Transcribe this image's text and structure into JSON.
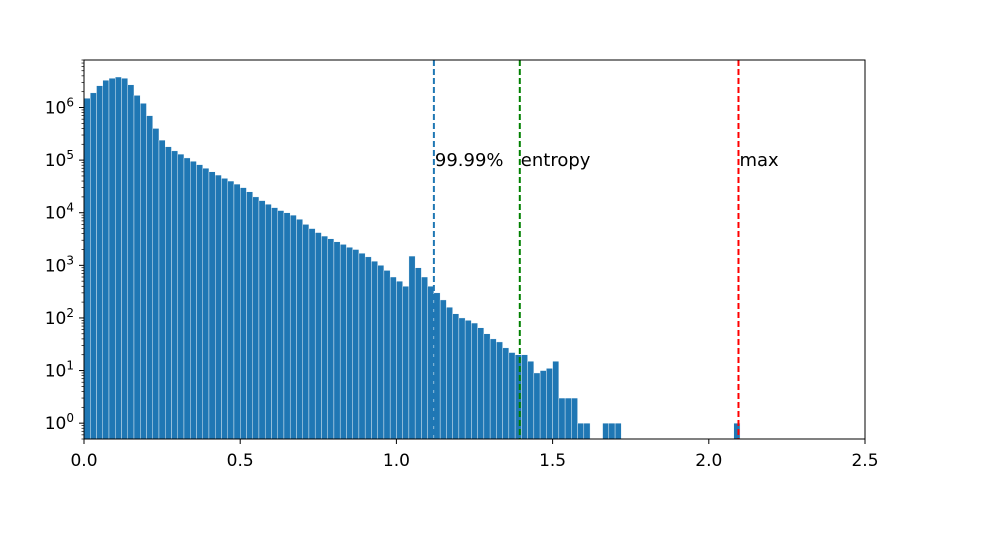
{
  "chart_data": {
    "type": "bar",
    "title": "",
    "xlabel": "",
    "ylabel": "",
    "yscale": "log",
    "xlim": [
      0.0,
      2.5
    ],
    "ylim": [
      0.5,
      8000000
    ],
    "grid": false,
    "bar_color": "#1f77b4",
    "bin_width": 0.02,
    "bins": [
      {
        "x": 0.0,
        "count": 1500000
      },
      {
        "x": 0.02,
        "count": 1900000
      },
      {
        "x": 0.04,
        "count": 2600000
      },
      {
        "x": 0.06,
        "count": 3300000
      },
      {
        "x": 0.08,
        "count": 3600000
      },
      {
        "x": 0.1,
        "count": 3800000
      },
      {
        "x": 0.12,
        "count": 3600000
      },
      {
        "x": 0.14,
        "count": 2700000
      },
      {
        "x": 0.16,
        "count": 1700000
      },
      {
        "x": 0.18,
        "count": 1200000
      },
      {
        "x": 0.2,
        "count": 700000
      },
      {
        "x": 0.22,
        "count": 400000
      },
      {
        "x": 0.24,
        "count": 240000
      },
      {
        "x": 0.26,
        "count": 180000
      },
      {
        "x": 0.28,
        "count": 150000
      },
      {
        "x": 0.3,
        "count": 130000
      },
      {
        "x": 0.32,
        "count": 110000
      },
      {
        "x": 0.34,
        "count": 95000
      },
      {
        "x": 0.36,
        "count": 82000
      },
      {
        "x": 0.38,
        "count": 70000
      },
      {
        "x": 0.4,
        "count": 60000
      },
      {
        "x": 0.42,
        "count": 52000
      },
      {
        "x": 0.44,
        "count": 45000
      },
      {
        "x": 0.46,
        "count": 40000
      },
      {
        "x": 0.48,
        "count": 35000
      },
      {
        "x": 0.5,
        "count": 30000
      },
      {
        "x": 0.52,
        "count": 25000
      },
      {
        "x": 0.54,
        "count": 20000
      },
      {
        "x": 0.56,
        "count": 17000
      },
      {
        "x": 0.58,
        "count": 14500
      },
      {
        "x": 0.6,
        "count": 12500
      },
      {
        "x": 0.62,
        "count": 11000
      },
      {
        "x": 0.64,
        "count": 10000
      },
      {
        "x": 0.66,
        "count": 9000
      },
      {
        "x": 0.68,
        "count": 7500
      },
      {
        "x": 0.7,
        "count": 6000
      },
      {
        "x": 0.72,
        "count": 5000
      },
      {
        "x": 0.74,
        "count": 4200
      },
      {
        "x": 0.76,
        "count": 3600
      },
      {
        "x": 0.78,
        "count": 3200
      },
      {
        "x": 0.8,
        "count": 2800
      },
      {
        "x": 0.82,
        "count": 2500
      },
      {
        "x": 0.84,
        "count": 2200
      },
      {
        "x": 0.86,
        "count": 2000
      },
      {
        "x": 0.88,
        "count": 1700
      },
      {
        "x": 0.9,
        "count": 1450
      },
      {
        "x": 0.92,
        "count": 1200
      },
      {
        "x": 0.94,
        "count": 1000
      },
      {
        "x": 0.96,
        "count": 800
      },
      {
        "x": 0.98,
        "count": 600
      },
      {
        "x": 1.0,
        "count": 500
      },
      {
        "x": 1.02,
        "count": 400
      },
      {
        "x": 1.04,
        "count": 1500
      },
      {
        "x": 1.06,
        "count": 900
      },
      {
        "x": 1.08,
        "count": 600
      },
      {
        "x": 1.1,
        "count": 400
      },
      {
        "x": 1.12,
        "count": 300
      },
      {
        "x": 1.14,
        "count": 220
      },
      {
        "x": 1.16,
        "count": 160
      },
      {
        "x": 1.18,
        "count": 120
      },
      {
        "x": 1.2,
        "count": 100
      },
      {
        "x": 1.22,
        "count": 90
      },
      {
        "x": 1.24,
        "count": 80
      },
      {
        "x": 1.26,
        "count": 65
      },
      {
        "x": 1.28,
        "count": 50
      },
      {
        "x": 1.3,
        "count": 40
      },
      {
        "x": 1.32,
        "count": 35
      },
      {
        "x": 1.34,
        "count": 27
      },
      {
        "x": 1.36,
        "count": 22
      },
      {
        "x": 1.38,
        "count": 20
      },
      {
        "x": 1.4,
        "count": 20
      },
      {
        "x": 1.42,
        "count": 15
      },
      {
        "x": 1.44,
        "count": 9
      },
      {
        "x": 1.46,
        "count": 10
      },
      {
        "x": 1.48,
        "count": 11
      },
      {
        "x": 1.5,
        "count": 15
      },
      {
        "x": 1.52,
        "count": 3
      },
      {
        "x": 1.54,
        "count": 3
      },
      {
        "x": 1.56,
        "count": 3
      },
      {
        "x": 1.58,
        "count": 1
      },
      {
        "x": 1.6,
        "count": 1
      },
      {
        "x": 1.62,
        "count": 0
      },
      {
        "x": 1.64,
        "count": 0
      },
      {
        "x": 1.66,
        "count": 1
      },
      {
        "x": 1.68,
        "count": 1
      },
      {
        "x": 1.7,
        "count": 1
      },
      {
        "x": 1.72,
        "count": 0
      },
      {
        "x": 2.08,
        "count": 1
      }
    ],
    "x_ticks": [
      {
        "value": 0.0,
        "label": "0.0"
      },
      {
        "value": 0.5,
        "label": "0.5"
      },
      {
        "value": 1.0,
        "label": "1.0"
      },
      {
        "value": 1.5,
        "label": "1.5"
      },
      {
        "value": 2.0,
        "label": "2.0"
      },
      {
        "value": 2.5,
        "label": "2.5"
      }
    ],
    "y_ticks": [
      {
        "exp": 0,
        "base": "10",
        "sup": "0"
      },
      {
        "exp": 1,
        "base": "10",
        "sup": "1"
      },
      {
        "exp": 2,
        "base": "10",
        "sup": "2"
      },
      {
        "exp": 3,
        "base": "10",
        "sup": "3"
      },
      {
        "exp": 4,
        "base": "10",
        "sup": "4"
      },
      {
        "exp": 5,
        "base": "10",
        "sup": "5"
      },
      {
        "exp": 6,
        "base": "10",
        "sup": "6"
      }
    ],
    "annotations": [
      {
        "name": "percentile-line",
        "x": 1.12,
        "label": "99.99%",
        "color": "#1f77b4",
        "label_y": 100000
      },
      {
        "name": "entropy-line",
        "x": 1.395,
        "label": "entropy",
        "color": "#008000",
        "label_y": 100000
      },
      {
        "name": "max-line",
        "x": 2.095,
        "label": "max",
        "color": "#ff0000",
        "label_y": 100000
      }
    ]
  }
}
